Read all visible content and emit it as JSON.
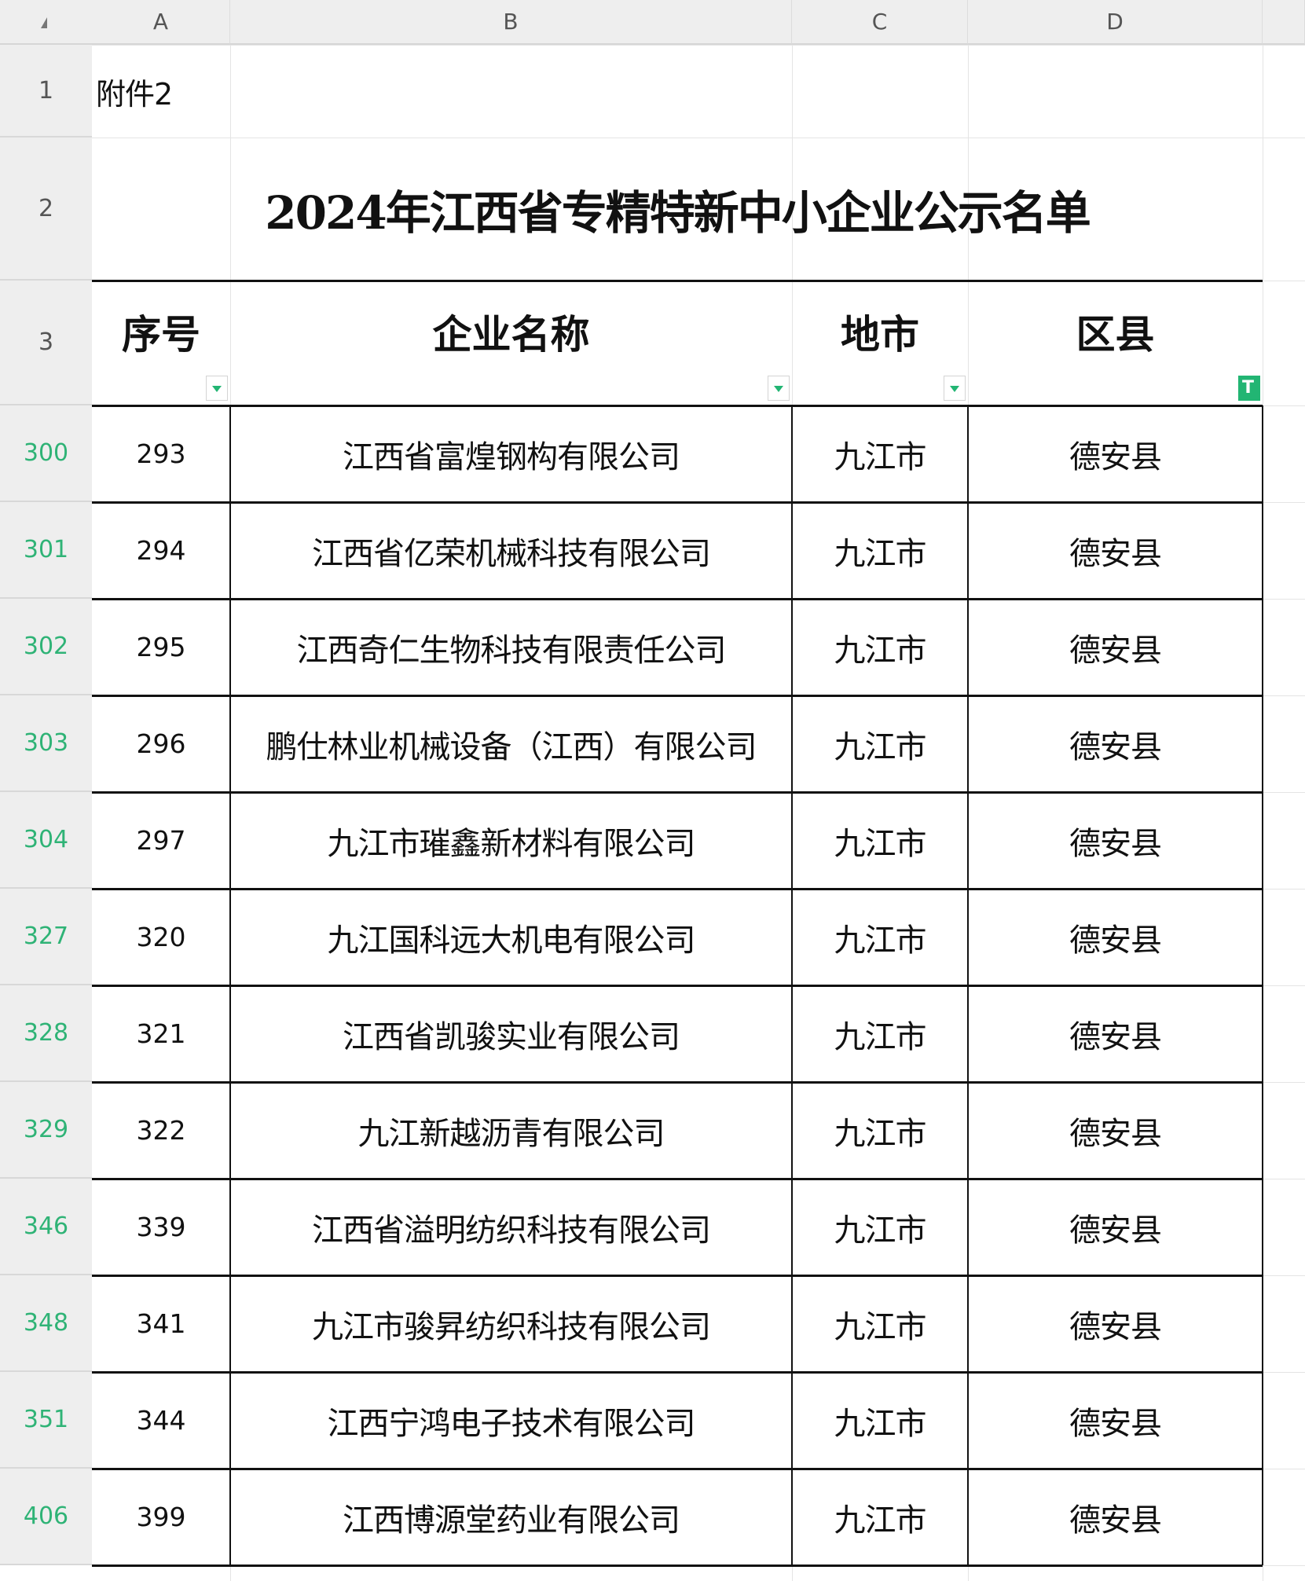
{
  "column_headers": [
    "A",
    "B",
    "C",
    "D"
  ],
  "row1": {
    "row_number": "1",
    "text": "附件2"
  },
  "row2": {
    "row_number": "2",
    "title": "2024年江西省专精特新中小企业公示名单"
  },
  "row3": {
    "row_number": "3",
    "headers": [
      "序号",
      "企业名称",
      "地市",
      "区县"
    ]
  },
  "filter_state": [
    "dropdown",
    "dropdown",
    "dropdown",
    "filtered"
  ],
  "accent_color": "#22b573",
  "rows": [
    {
      "row_number": "300",
      "seq": "293",
      "name": "江西省富煌钢构有限公司",
      "city": "九江市",
      "county": "德安县"
    },
    {
      "row_number": "301",
      "seq": "294",
      "name": "江西省亿荣机械科技有限公司",
      "city": "九江市",
      "county": "德安县"
    },
    {
      "row_number": "302",
      "seq": "295",
      "name": "江西奇仁生物科技有限责任公司",
      "city": "九江市",
      "county": "德安县"
    },
    {
      "row_number": "303",
      "seq": "296",
      "name": "鹏仕林业机械设备（江西）有限公司",
      "city": "九江市",
      "county": "德安县"
    },
    {
      "row_number": "304",
      "seq": "297",
      "name": "九江市璀鑫新材料有限公司",
      "city": "九江市",
      "county": "德安县"
    },
    {
      "row_number": "327",
      "seq": "320",
      "name": "九江国科远大机电有限公司",
      "city": "九江市",
      "county": "德安县"
    },
    {
      "row_number": "328",
      "seq": "321",
      "name": "江西省凯骏实业有限公司",
      "city": "九江市",
      "county": "德安县"
    },
    {
      "row_number": "329",
      "seq": "322",
      "name": "九江新越沥青有限公司",
      "city": "九江市",
      "county": "德安县"
    },
    {
      "row_number": "346",
      "seq": "339",
      "name": "江西省溢明纺织科技有限公司",
      "city": "九江市",
      "county": "德安县"
    },
    {
      "row_number": "348",
      "seq": "341",
      "name": "九江市骏昇纺织科技有限公司",
      "city": "九江市",
      "county": "德安县"
    },
    {
      "row_number": "351",
      "seq": "344",
      "name": "江西宁鸿电子技术有限公司",
      "city": "九江市",
      "county": "德安县"
    },
    {
      "row_number": "406",
      "seq": "399",
      "name": "江西博源堂药业有限公司",
      "city": "九江市",
      "county": "德安县"
    }
  ]
}
